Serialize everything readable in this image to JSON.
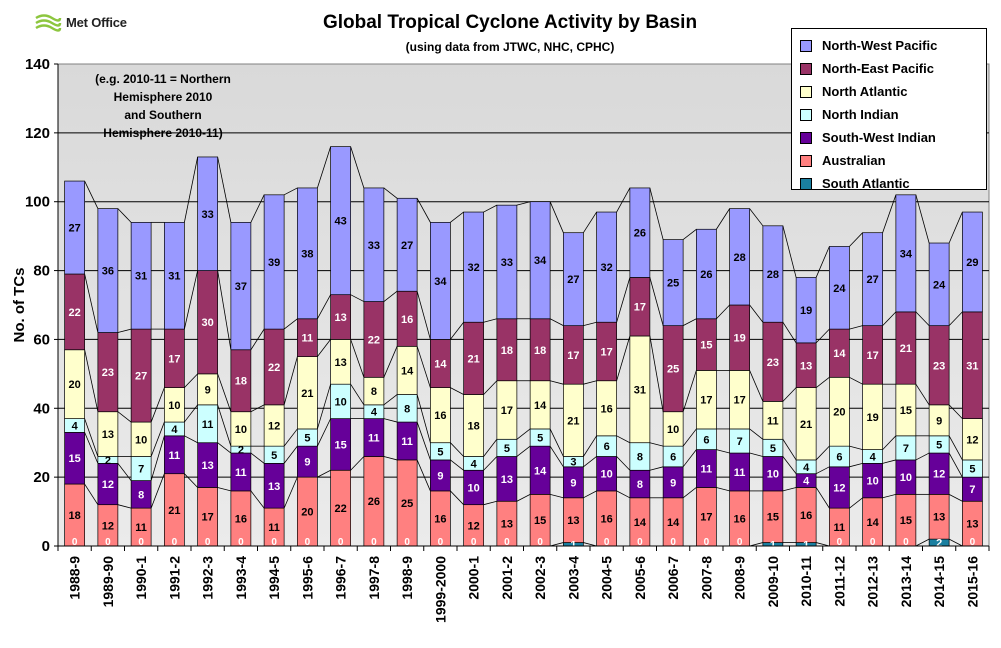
{
  "logo": {
    "text": "Met Office"
  },
  "note": {
    "line1": "(e.g. 2010-11 = Northern",
    "line2": "Hemisphere 2010",
    "line3": "and Southern",
    "line4": "Hemisphere 2010-11)"
  },
  "chart_data": {
    "type": "bar",
    "stacked": true,
    "title": "Global Tropical Cyclone Activity by Basin",
    "subtitle": "(using data from JTWC, NHC, CPHC)",
    "xlabel": "",
    "ylabel": "No. of TCs",
    "ylim": [
      0,
      140
    ],
    "yticks": [
      0,
      20,
      40,
      60,
      80,
      100,
      120,
      140
    ],
    "legend_position": "top-right",
    "categories": [
      "1988-9",
      "1989-90",
      "1990-1",
      "1991-2",
      "1992-3",
      "1993-4",
      "1994-5",
      "1995-6",
      "1996-7",
      "1997-8",
      "1998-9",
      "1999-2000",
      "2000-1",
      "2001-2",
      "2002-3",
      "2003-4",
      "2004-5",
      "2005-6",
      "2006-7",
      "2007-8",
      "2008-9",
      "2009-10",
      "2010-11",
      "2011-12",
      "2012-13",
      "2013-14",
      "2014-15",
      "2015-16"
    ],
    "series": [
      {
        "name": "South Atlantic",
        "color": "#1a7fa0",
        "values": [
          0,
          0,
          0,
          0,
          0,
          0,
          0,
          0,
          0,
          0,
          0,
          0,
          0,
          0,
          0,
          1,
          0,
          0,
          0,
          0,
          0,
          1,
          1,
          0,
          0,
          0,
          2,
          0
        ]
      },
      {
        "name": "Australian",
        "color": "#ff8080",
        "values": [
          18,
          12,
          11,
          21,
          17,
          16,
          11,
          20,
          22,
          26,
          25,
          16,
          12,
          13,
          15,
          13,
          16,
          14,
          14,
          17,
          16,
          15,
          16,
          11,
          14,
          15,
          13,
          13
        ]
      },
      {
        "name": "South-West Indian",
        "color": "#660099",
        "values": [
          15,
          12,
          8,
          11,
          13,
          11,
          13,
          9,
          15,
          11,
          11,
          9,
          10,
          13,
          14,
          9,
          10,
          8,
          9,
          11,
          11,
          10,
          4,
          12,
          10,
          10,
          12,
          7
        ]
      },
      {
        "name": "North Indian",
        "color": "#ccffff",
        "values": [
          4,
          2,
          7,
          4,
          11,
          2,
          5,
          5,
          10,
          4,
          8,
          5,
          4,
          5,
          5,
          3,
          6,
          8,
          6,
          6,
          7,
          5,
          4,
          6,
          4,
          7,
          5,
          5
        ]
      },
      {
        "name": "North Atlantic",
        "color": "#ffffcc",
        "values": [
          20,
          13,
          10,
          10,
          9,
          10,
          12,
          21,
          13,
          8,
          14,
          16,
          18,
          17,
          14,
          21,
          16,
          31,
          10,
          17,
          17,
          11,
          21,
          20,
          19,
          15,
          9,
          12
        ]
      },
      {
        "name": "North-East Pacific",
        "color": "#993366",
        "values": [
          22,
          23,
          27,
          17,
          30,
          18,
          22,
          11,
          13,
          22,
          16,
          14,
          21,
          18,
          18,
          17,
          17,
          17,
          25,
          15,
          19,
          23,
          13,
          14,
          17,
          21,
          23,
          31
        ]
      },
      {
        "name": "North-West Pacific",
        "color": "#9999ff",
        "values": [
          27,
          36,
          31,
          31,
          33,
          37,
          39,
          38,
          43,
          33,
          27,
          34,
          32,
          33,
          34,
          27,
          32,
          26,
          25,
          26,
          28,
          28,
          19,
          24,
          27,
          34,
          24,
          29
        ]
      }
    ]
  }
}
